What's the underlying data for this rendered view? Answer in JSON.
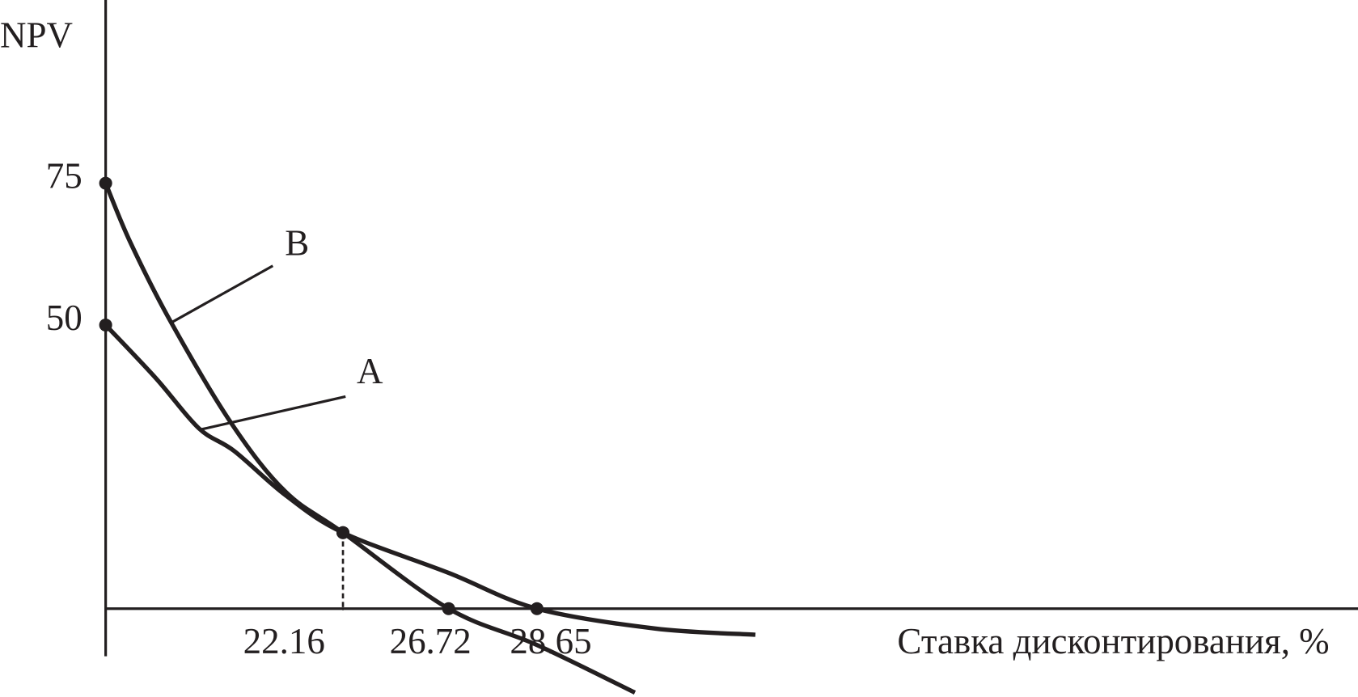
{
  "chart_data": {
    "type": "line",
    "ylabel": "NPV",
    "xlabel": "Ставка дисконтирования, %",
    "xlim": [
      0,
      45
    ],
    "xticks": [
      22.16,
      26.72,
      28.65
    ],
    "ylim": [
      -8.4,
      107.3
    ],
    "yticks": [
      50,
      75
    ],
    "series": [
      {
        "name": "A",
        "color": "#231f20",
        "x": [
          0,
          4.7,
          8.7,
          12,
          16.8,
          22.16,
          26.72,
          28.65,
          31,
          33
        ],
        "values": [
          50,
          40.6,
          31.8,
          27.8,
          20,
          13.4,
          6.3,
          0,
          -3.5,
          -4.6
        ]
      },
      {
        "name": "B",
        "color": "#231f20",
        "x": [
          0,
          2.3,
          6.1,
          11.8,
          16.8,
          22.16,
          26.72,
          28.65,
          30.6
        ],
        "values": [
          75,
          64.6,
          50.5,
          32.5,
          20.6,
          13.4,
          0,
          -6.4,
          -14.8
        ]
      }
    ]
  }
}
